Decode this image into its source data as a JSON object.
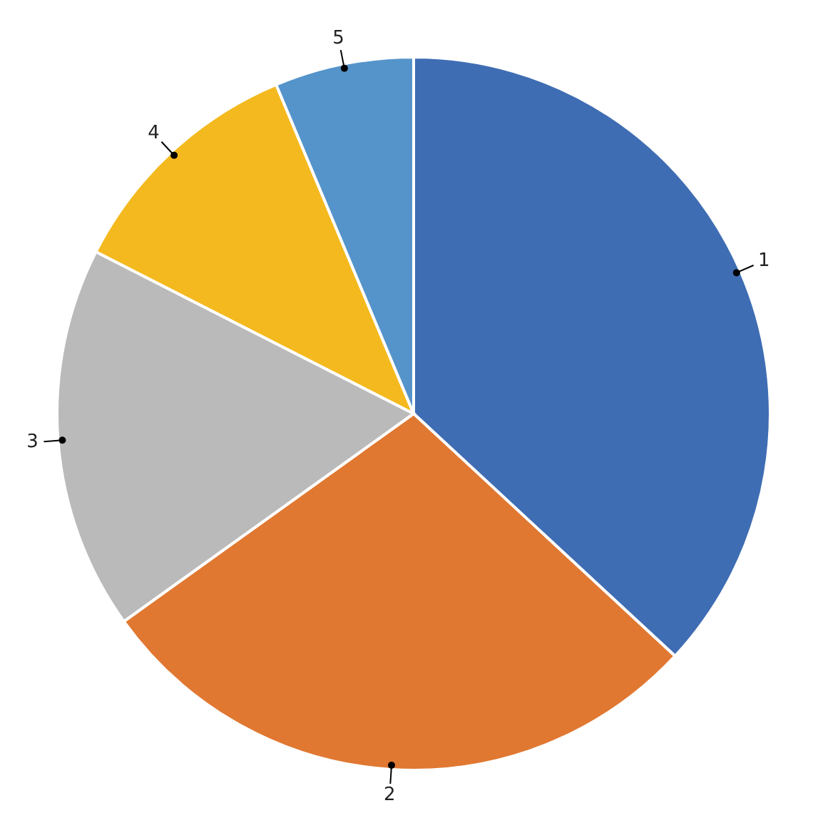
{
  "chart_data": {
    "type": "pie",
    "categories": [
      "1",
      "2",
      "3",
      "4",
      "5"
    ],
    "values": [
      36.9,
      28.2,
      17.4,
      11.2,
      6.3
    ],
    "colors": [
      "#3f6db3",
      "#e07832",
      "#bababa",
      "#f4b91e",
      "#5594ca"
    ]
  }
}
